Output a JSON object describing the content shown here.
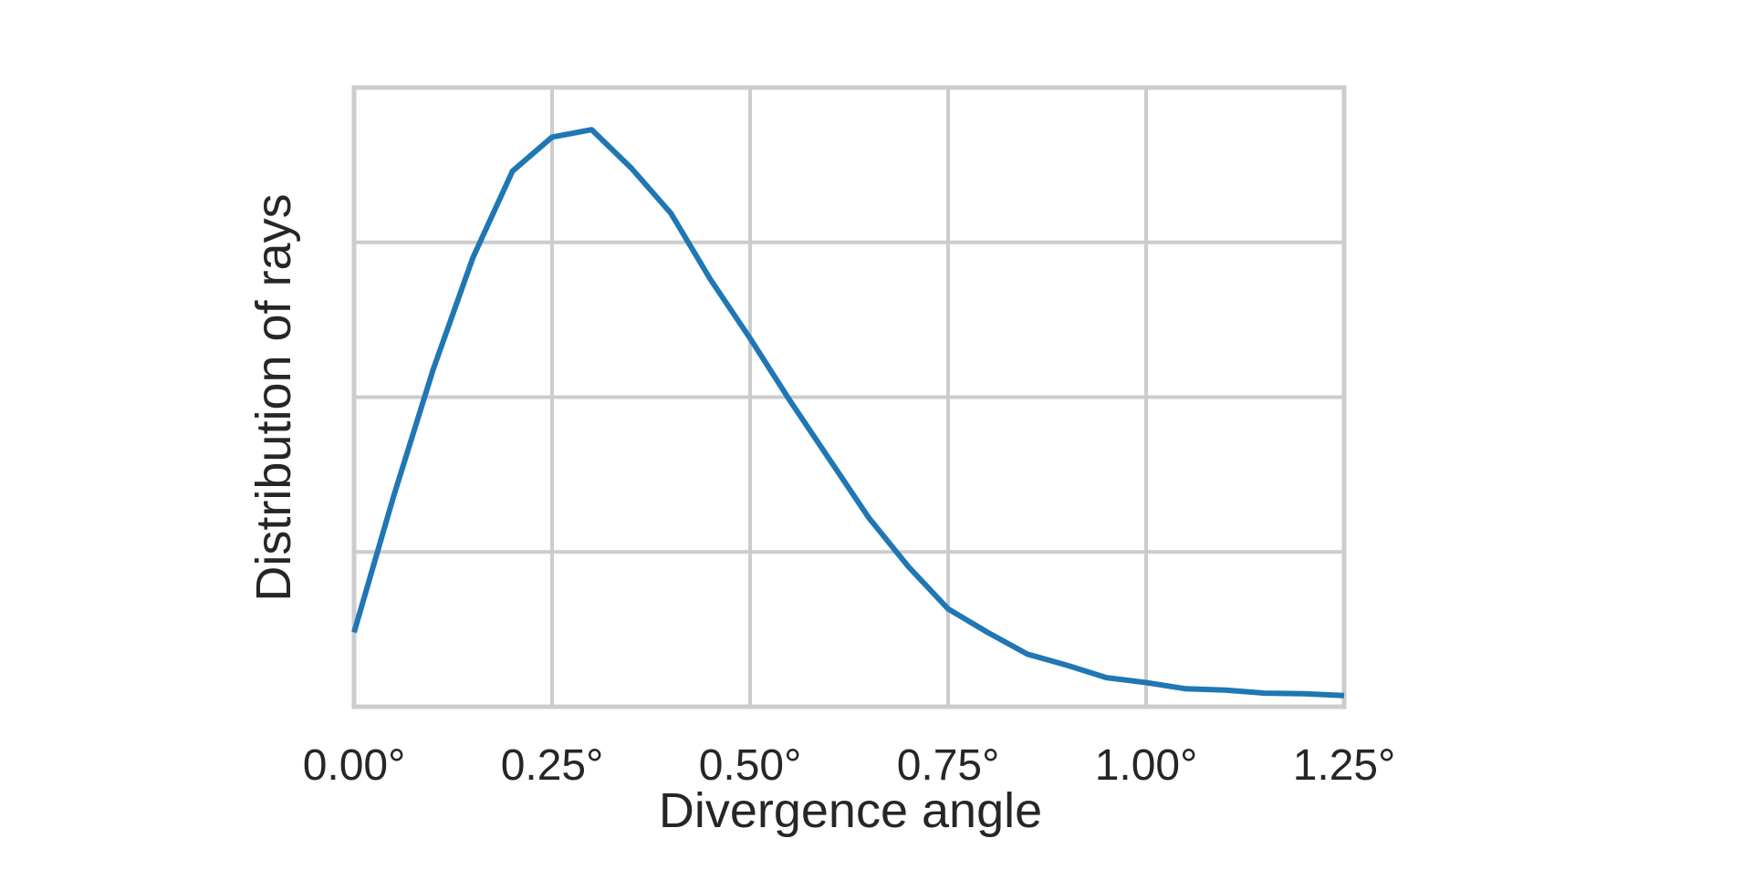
{
  "chart_data": {
    "type": "line",
    "title": "",
    "xlabel": "Divergence angle",
    "ylabel": "Distribution of rays",
    "xlim": [
      0.0,
      1.25
    ],
    "ylim": [
      0.0,
      1.0
    ],
    "x_ticks": [
      0.0,
      0.25,
      0.5,
      0.75,
      1.0,
      1.25
    ],
    "x_tick_labels": [
      "0.00°",
      "0.25°",
      "0.50°",
      "0.75°",
      "1.00°",
      "1.25°"
    ],
    "y_gridlines": [
      0.0,
      0.25,
      0.5,
      0.75,
      1.0
    ],
    "y_tick_labels": [],
    "grid": true,
    "legend": "none",
    "series": [
      {
        "color": "#1f77b4",
        "x": [
          0.0,
          0.05,
          0.1,
          0.15,
          0.2,
          0.25,
          0.3,
          0.35,
          0.4,
          0.45,
          0.5,
          0.55,
          0.6,
          0.65,
          0.7,
          0.75,
          0.8,
          0.85,
          0.9,
          0.95,
          1.0,
          1.05,
          1.1,
          1.15,
          1.2,
          1.25
        ],
        "y": [
          0.12,
          0.34,
          0.545,
          0.725,
          0.865,
          0.92,
          0.932,
          0.87,
          0.797,
          0.69,
          0.595,
          0.495,
          0.4,
          0.305,
          0.226,
          0.158,
          0.12,
          0.085,
          0.067,
          0.047,
          0.039,
          0.029,
          0.027,
          0.022,
          0.021,
          0.018
        ]
      }
    ]
  },
  "colors": {
    "grid": "#cccccc",
    "text": "#262626",
    "background": "#ffffff"
  }
}
